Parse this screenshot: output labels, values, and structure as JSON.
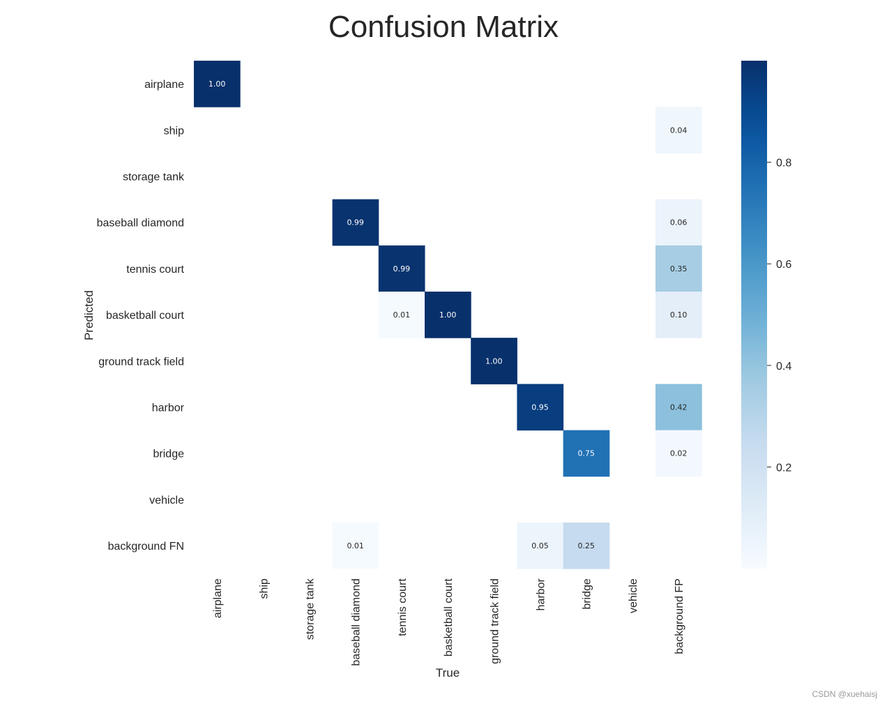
{
  "chart_data": {
    "type": "heatmap",
    "title": "Confusion Matrix",
    "xlabel": "True",
    "ylabel": "Predicted",
    "x_categories": [
      "airplane",
      "ship",
      "storage tank",
      "baseball diamond",
      "tennis court",
      "basketball court",
      "ground track field",
      "harbor",
      "bridge",
      "vehicle",
      "background FP"
    ],
    "y_categories": [
      "airplane",
      "ship",
      "storage tank",
      "baseball diamond",
      "tennis court",
      "basketball court",
      "ground track field",
      "harbor",
      "bridge",
      "vehicle",
      "background FN"
    ],
    "values": [
      [
        1.0,
        null,
        null,
        null,
        null,
        null,
        null,
        null,
        null,
        null,
        null
      ],
      [
        null,
        null,
        null,
        null,
        null,
        null,
        null,
        null,
        null,
        null,
        0.04
      ],
      [
        null,
        null,
        null,
        null,
        null,
        null,
        null,
        null,
        null,
        null,
        null
      ],
      [
        null,
        null,
        null,
        0.99,
        null,
        null,
        null,
        null,
        null,
        null,
        0.06
      ],
      [
        null,
        null,
        null,
        null,
        0.99,
        null,
        null,
        null,
        null,
        null,
        0.35
      ],
      [
        null,
        null,
        null,
        null,
        0.01,
        1.0,
        null,
        null,
        null,
        null,
        0.1
      ],
      [
        null,
        null,
        null,
        null,
        null,
        null,
        1.0,
        null,
        null,
        null,
        null
      ],
      [
        null,
        null,
        null,
        null,
        null,
        null,
        null,
        0.95,
        null,
        null,
        0.42
      ],
      [
        null,
        null,
        null,
        null,
        null,
        null,
        null,
        null,
        0.75,
        null,
        0.02
      ],
      [
        null,
        null,
        null,
        null,
        null,
        null,
        null,
        null,
        null,
        null,
        null
      ],
      [
        null,
        null,
        null,
        0.01,
        null,
        null,
        null,
        0.05,
        0.25,
        null,
        null
      ]
    ],
    "colorbar": {
      "range": [
        0,
        1
      ],
      "ticks": [
        0.2,
        0.4,
        0.6,
        0.8
      ],
      "tick_labels": [
        "0.2",
        "0.4",
        "0.6",
        "0.8"
      ],
      "colormap": "Blues"
    },
    "grid": false
  },
  "watermark": "CSDN @xuehaisj"
}
